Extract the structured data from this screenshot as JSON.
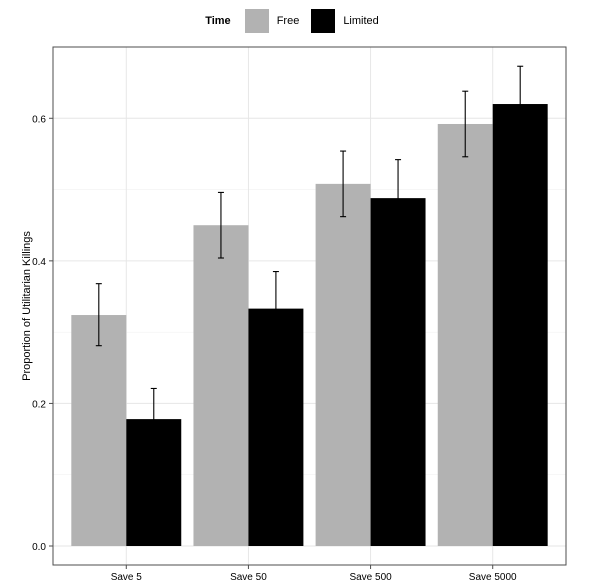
{
  "chart_data": {
    "type": "bar",
    "title": "",
    "xlabel": "",
    "ylabel": "Proportion of Utilitarian Killings",
    "categories": [
      "Save 5",
      "Save 50",
      "Save 500",
      "Save 5000"
    ],
    "ylim": [
      0,
      0.7
    ],
    "yticks": [
      0.0,
      0.2,
      0.4,
      0.6
    ],
    "ytick_labels": [
      "0.0",
      "0.2",
      "0.4",
      "0.6"
    ],
    "grid": true,
    "legend": {
      "title": "Time",
      "position": "top",
      "entries": [
        {
          "name": "Free",
          "color": "#b2b2b2"
        },
        {
          "name": "Limited",
          "color": "#000000"
        }
      ]
    },
    "series": [
      {
        "name": "Free",
        "color": "#b2b2b2",
        "values": [
          0.324,
          0.45,
          0.508,
          0.592
        ],
        "error_low": [
          0.281,
          0.404,
          0.462,
          0.546
        ],
        "error_high": [
          0.368,
          0.496,
          0.554,
          0.638
        ]
      },
      {
        "name": "Limited",
        "color": "#000000",
        "values": [
          0.178,
          0.333,
          0.488,
          0.62
        ],
        "error_low": [
          0.135,
          0.281,
          0.442,
          0.566
        ],
        "error_high": [
          0.221,
          0.385,
          0.542,
          0.673
        ]
      }
    ]
  }
}
